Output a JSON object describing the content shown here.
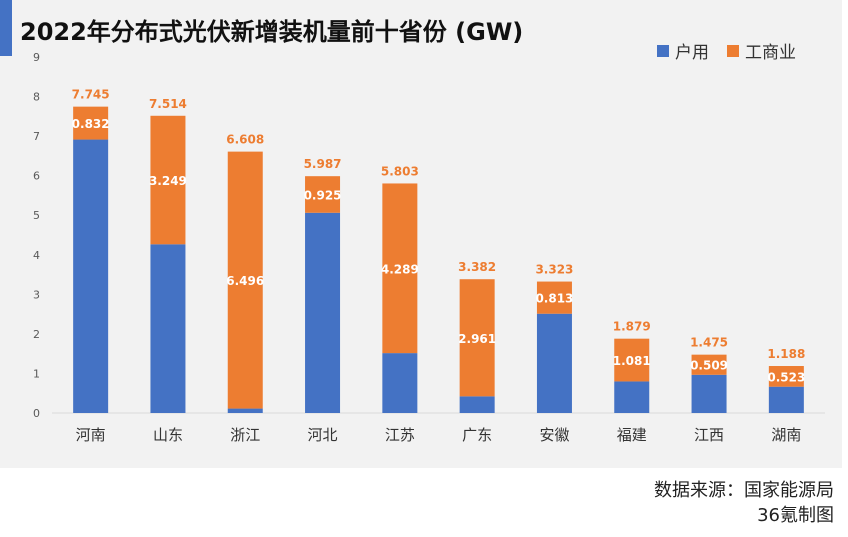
{
  "title": "2022年分布式光伏新增装机量前十省份 (GW)",
  "source_line1": "数据来源：国家能源局",
  "source_line2": "36氪制图",
  "colors": {
    "household": "#4472c4",
    "commercial": "#ed7d31",
    "accent": "#4472c4"
  },
  "chart_data": {
    "type": "bar",
    "stacked": true,
    "title": "2022年分布式光伏新增装机量前十省份 (GW)",
    "categories": [
      "河南",
      "山东",
      "浙江",
      "河北",
      "江苏",
      "广东",
      "安徽",
      "福建",
      "江西",
      "湖南"
    ],
    "series": [
      {
        "name": "户用",
        "values": [
          6.913,
          4.265,
          0.112,
          5.062,
          1.514,
          0.421,
          2.51,
          0.798,
          0.966,
          0.665
        ]
      },
      {
        "name": "工商业",
        "values": [
          0.832,
          3.249,
          6.496,
          0.925,
          4.289,
          2.961,
          0.813,
          1.081,
          0.509,
          0.523
        ]
      }
    ],
    "totals": [
      "7.745",
      "7.514",
      "6.608",
      "5.987",
      "5.803",
      "3.382",
      "3.323",
      "1.879",
      "1.475",
      "1.188"
    ],
    "segment_labels": [
      "0.832",
      "3.249",
      "6.496",
      "0.925",
      "4.289",
      "2.961",
      "0.813",
      "1.081",
      "0.509",
      "0.523"
    ],
    "ylim": [
      0,
      9
    ],
    "yticks": [
      "0",
      "1",
      "2",
      "3",
      "4",
      "5",
      "6",
      "7",
      "8",
      "9"
    ],
    "grid": false,
    "legend": "top-right"
  }
}
